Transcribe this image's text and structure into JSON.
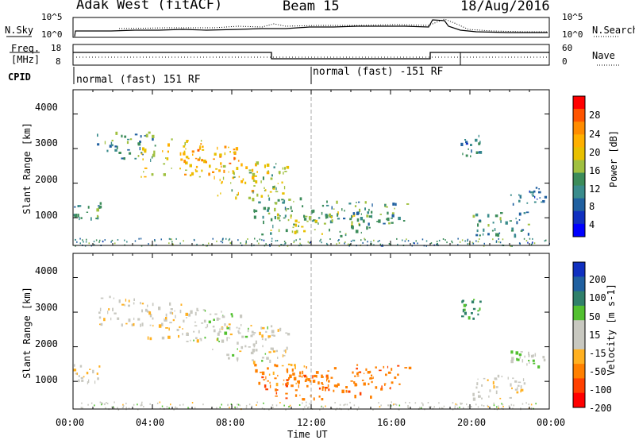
{
  "header": {
    "station": "Adak West (fitACF)",
    "beam": "Beam 15",
    "date": "18/Aug/2016"
  },
  "chart_data": {
    "type": "heatmap",
    "x_axis": {
      "label": "Time UT",
      "ticks": [
        "00:00",
        "04:00",
        "08:00",
        "12:00",
        "16:00",
        "20:00",
        "00:00"
      ],
      "range_hours": [
        0,
        24
      ]
    },
    "top_strip": {
      "left_label": "N.Sky",
      "right_label": "N.Search",
      "left_ticks": [
        "10^5",
        "10^0"
      ],
      "right_ticks": [
        "10^5",
        "10^0"
      ]
    },
    "freq_strip": {
      "left_label": "Freq. [MHz]",
      "right_label": "Nave",
      "left_ticks": [
        "18",
        "8"
      ],
      "right_ticks": [
        "60",
        "0"
      ]
    },
    "cpid": {
      "label": "CPID",
      "segments": [
        {
          "start_hour": 0,
          "end_hour": 12,
          "text": "normal (fast) 151 RF"
        },
        {
          "start_hour": 12,
          "end_hour": 24,
          "text": "normal (fast) -151 RF"
        }
      ]
    },
    "power_panel": {
      "ylabel": "Slant Range [km]",
      "y_ticks": [
        1000,
        2000,
        3000,
        4000
      ],
      "ylim": [
        200,
        4700
      ],
      "colorbar": {
        "label": "Power [dB]",
        "ticks": [
          "28",
          "24",
          "20",
          "16",
          "12",
          "8",
          "4"
        ],
        "colors": [
          "#ff0000",
          "#ff5500",
          "#ff8c00",
          "#ffb000",
          "#e8c000",
          "#a0c040",
          "#3c8c5a",
          "#3a8c8c",
          "#2060a0",
          "#1030c0",
          "#0000ff"
        ]
      }
    },
    "velocity_panel": {
      "ylabel": "Slant Range [km]",
      "y_ticks": [
        1000,
        2000,
        3000,
        4000
      ],
      "ylim": [
        200,
        4700
      ],
      "colorbar": {
        "label": "Velocity [m s-1]",
        "ticks": [
          "200",
          "100",
          "50",
          "15",
          "-15",
          "-50",
          "-100",
          "-200"
        ],
        "colors": [
          "#1030c0",
          "#2060a0",
          "#30806a",
          "#52c030",
          "#c8c8c0",
          "#c8c8c0",
          "#ffb020",
          "#ff8000",
          "#ff4000",
          "#ff0000"
        ]
      }
    },
    "echo_regions": [
      {
        "t0": 1.2,
        "t1": 4.2,
        "r0": 2600,
        "r1": 3500,
        "power": 10,
        "velocity": -5
      },
      {
        "t0": 3.4,
        "t1": 6.6,
        "r0": 2200,
        "r1": 3300,
        "power": 18,
        "velocity": -8
      },
      {
        "t0": 5.5,
        "t1": 8.5,
        "r0": 2100,
        "r1": 3100,
        "power": 22,
        "velocity": 5
      },
      {
        "t0": 7.0,
        "t1": 10.0,
        "r0": 1600,
        "r1": 2700,
        "power": 18,
        "velocity": 0
      },
      {
        "t0": 9.0,
        "t1": 10.8,
        "r0": 1700,
        "r1": 2600,
        "power": 14,
        "velocity": -10
      },
      {
        "t0": 0.0,
        "t1": 1.4,
        "r0": 1000,
        "r1": 1500,
        "power": 10,
        "velocity": -5
      },
      {
        "t0": 9.0,
        "t1": 12.0,
        "r0": 900,
        "r1": 1600,
        "power": 12,
        "velocity": -40
      },
      {
        "t0": 9.4,
        "t1": 15.0,
        "r0": 500,
        "r1": 1200,
        "power": 14,
        "velocity": -70
      },
      {
        "t0": 12.0,
        "t1": 17.0,
        "r0": 800,
        "r1": 1500,
        "power": 10,
        "velocity": -60
      },
      {
        "t0": 20.0,
        "t1": 23.0,
        "r0": 500,
        "r1": 1200,
        "power": 10,
        "velocity": -5
      },
      {
        "t0": 22.0,
        "t1": 23.8,
        "r0": 1400,
        "r1": 1900,
        "power": 8,
        "velocity": 10
      },
      {
        "t0": 19.5,
        "t1": 20.5,
        "r0": 2800,
        "r1": 3400,
        "power": 8,
        "velocity": 30
      }
    ]
  }
}
